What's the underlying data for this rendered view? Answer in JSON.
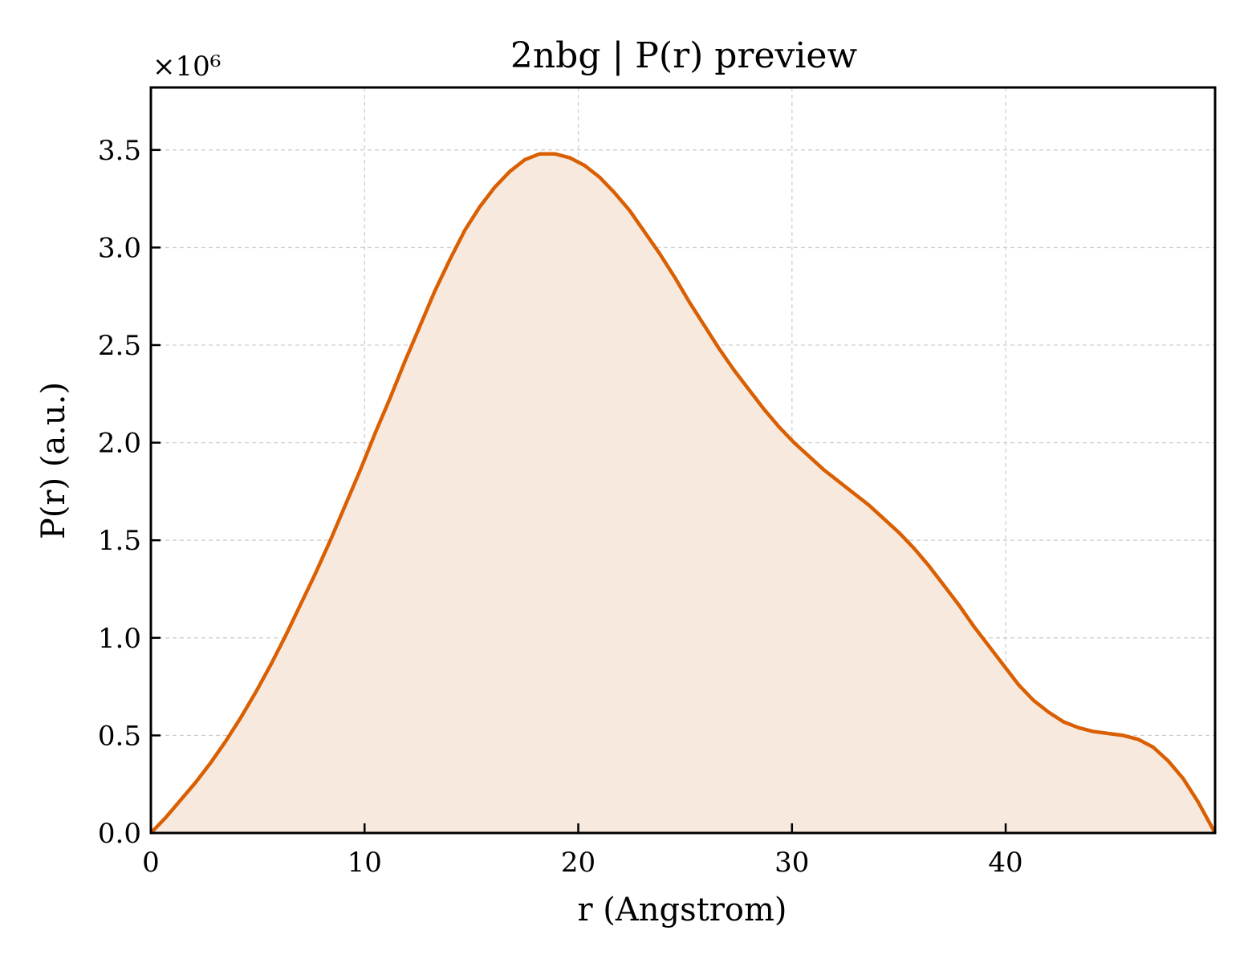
{
  "chart_data": {
    "type": "area",
    "title": "2nbg | P(r) preview",
    "xlabel": "r (Angstrom)",
    "ylabel": "P(r) (a.u.)",
    "y_multiplier": "×10⁶",
    "xlim": [
      0,
      49.8
    ],
    "ylim": [
      0,
      3.82
    ],
    "x_ticks": [
      "0",
      "10",
      "20",
      "30",
      "40"
    ],
    "y_ticks": [
      "0.0",
      "0.5",
      "1.0",
      "1.5",
      "2.0",
      "2.5",
      "3.0",
      "3.5"
    ],
    "grid": true,
    "series": [
      {
        "x": [
          0,
          0.7,
          1.4,
          2.1,
          2.8,
          3.5,
          4.2,
          4.9,
          5.6,
          6.3,
          7.0,
          7.7,
          8.4,
          9.1,
          9.8,
          10.5,
          11.2,
          11.9,
          12.6,
          13.3,
          14.0,
          14.7,
          15.4,
          16.1,
          16.8,
          17.5,
          18.2,
          18.9,
          19.6,
          20.3,
          21.0,
          21.7,
          22.4,
          23.1,
          23.8,
          24.5,
          25.2,
          25.9,
          26.6,
          27.3,
          28.0,
          28.7,
          29.4,
          30.1,
          30.8,
          31.5,
          32.2,
          32.9,
          33.6,
          34.3,
          35.0,
          35.7,
          36.4,
          37.1,
          37.8,
          38.5,
          39.2,
          39.9,
          40.6,
          41.3,
          42.0,
          42.7,
          43.4,
          44.1,
          44.8,
          45.5,
          46.2,
          46.9,
          47.6,
          48.3,
          49.0,
          49.8
        ],
        "values": [
          0.0,
          0.08,
          0.17,
          0.26,
          0.36,
          0.47,
          0.59,
          0.72,
          0.86,
          1.01,
          1.17,
          1.33,
          1.5,
          1.68,
          1.86,
          2.05,
          2.23,
          2.42,
          2.6,
          2.78,
          2.94,
          3.09,
          3.21,
          3.31,
          3.39,
          3.45,
          3.48,
          3.48,
          3.46,
          3.42,
          3.36,
          3.28,
          3.19,
          3.08,
          2.97,
          2.85,
          2.72,
          2.6,
          2.48,
          2.37,
          2.27,
          2.17,
          2.08,
          2.0,
          1.93,
          1.86,
          1.8,
          1.74,
          1.68,
          1.61,
          1.54,
          1.46,
          1.37,
          1.27,
          1.17,
          1.06,
          0.96,
          0.86,
          0.76,
          0.68,
          0.62,
          0.57,
          0.54,
          0.52,
          0.51,
          0.5,
          0.48,
          0.44,
          0.37,
          0.28,
          0.16,
          0.0
        ]
      }
    ],
    "colors": {
      "line": "#d95f02",
      "fill": "#f8e9de",
      "grid": "#d0d0d0"
    }
  }
}
